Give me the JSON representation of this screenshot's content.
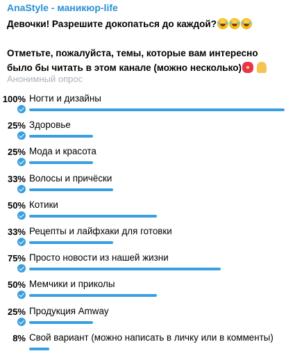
{
  "channel": {
    "title": "AnaStyle - маникюр-life"
  },
  "poll": {
    "question_line1": "Девочки! Разрешите докопаться до каждой?",
    "question_line2": "Отметьте, пожалуйста, темы, которые вам интересно было бы читать в этом канале (можно несколько)",
    "icons": {
      "laugh": "face-with-tears-of-joy-icon",
      "flower": "hibiscus-icon",
      "pray": "folded-hands-icon"
    },
    "type_label": "Анонимный опрос",
    "accent_color": "#3a9fe0",
    "options": [
      {
        "percent": 100,
        "percent_label": "100%",
        "label": "Ногти и дизайны",
        "selected": true
      },
      {
        "percent": 25,
        "percent_label": "25%",
        "label": "Здоровье",
        "selected": true
      },
      {
        "percent": 25,
        "percent_label": "25%",
        "label": "Мода и красота",
        "selected": true
      },
      {
        "percent": 33,
        "percent_label": "33%",
        "label": "Волосы и причёски",
        "selected": true
      },
      {
        "percent": 50,
        "percent_label": "50%",
        "label": "Котики",
        "selected": true
      },
      {
        "percent": 33,
        "percent_label": "33%",
        "label": "Рецепты и лайфхаки для готовки",
        "selected": true
      },
      {
        "percent": 75,
        "percent_label": "75%",
        "label": "Просто новости из нашей жизни",
        "selected": true
      },
      {
        "percent": 50,
        "percent_label": "50%",
        "label": "Мемчики и приколы",
        "selected": true
      },
      {
        "percent": 25,
        "percent_label": "25%",
        "label": "Продукция Amway",
        "selected": true
      },
      {
        "percent": 8,
        "percent_label": "8%",
        "label": "Свой вариант (можно написать в личку или в комменты)",
        "selected": false
      }
    ]
  }
}
